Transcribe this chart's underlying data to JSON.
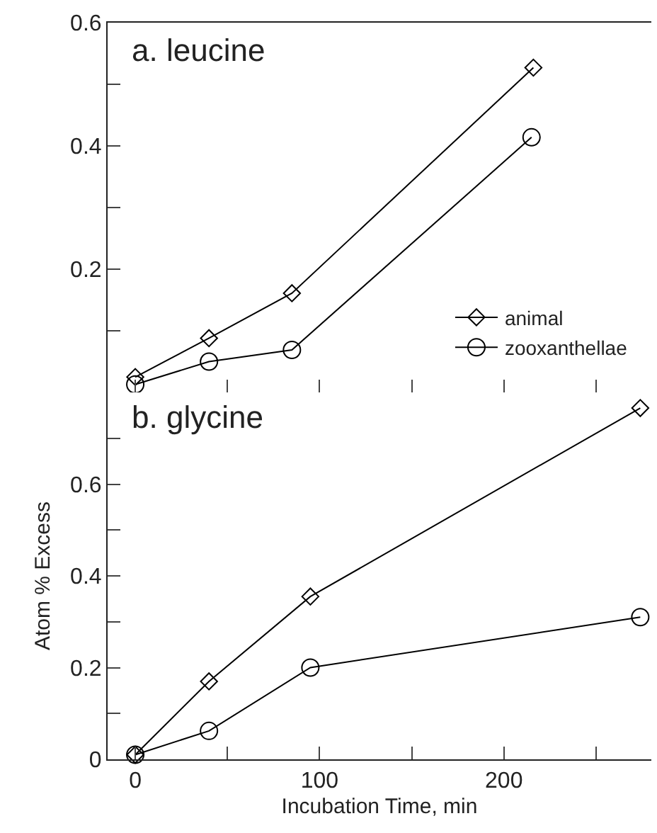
{
  "chart_data": [
    {
      "type": "line",
      "title": "a. leucine",
      "legend": "bottom right",
      "tick_labels": "y",
      "xlim": [
        -15,
        280
      ],
      "xticks": [
        0,
        {
          "value": 50,
          "label": null
        },
        100,
        {
          "value": 150,
          "label": null
        },
        200,
        {
          "value": 250,
          "label": null
        }
      ],
      "ylim": [
        0,
        0.6
      ],
      "yticks": [
        {
          "value": 0,
          "label": null
        },
        {
          "value": 0.1,
          "label": null
        },
        0.2,
        {
          "value": 0.3,
          "label": null
        },
        0.4,
        {
          "value": 0.5,
          "label": null
        },
        0.6
      ],
      "series": [
        {
          "name": "animal",
          "color": "#000000",
          "marker": "diamond",
          "x": [
            0,
            40,
            85,
            216
          ],
          "values": [
            0.025,
            0.088,
            0.161,
            0.527
          ]
        },
        {
          "name": "zooxanthellae",
          "color": "#000000",
          "marker": "circle",
          "x": [
            0,
            40,
            85,
            215
          ],
          "values": [
            0.013,
            0.05,
            0.069,
            0.414
          ]
        }
      ]
    },
    {
      "type": "line",
      "title": "b. glycine",
      "xlabel": "Incubation Time, min",
      "ylabel": "Atom % Excess",
      "xlim": [
        -15,
        280
      ],
      "xticks": [
        0,
        {
          "value": 50,
          "label": null
        },
        100,
        {
          "value": 150,
          "label": null
        },
        200,
        {
          "value": 250,
          "label": null
        }
      ],
      "ylim": [
        0,
        0.8
      ],
      "yticks": [
        0,
        {
          "value": 0.1,
          "label": null
        },
        0.2,
        {
          "value": 0.3,
          "label": null
        },
        0.4,
        {
          "value": 0.5,
          "label": null
        },
        0.6,
        {
          "value": 0.7,
          "label": null
        }
      ],
      "series": [
        {
          "color": "#000000",
          "marker": "diamond",
          "x": [
            0,
            40,
            95,
            274
          ],
          "values": [
            0.01,
            0.17,
            0.355,
            0.766
          ]
        },
        {
          "color": "#000000",
          "marker": "circle",
          "x": [
            0,
            40,
            95,
            274
          ],
          "values": [
            0.01,
            0.062,
            0.2,
            0.31
          ]
        }
      ]
    }
  ]
}
